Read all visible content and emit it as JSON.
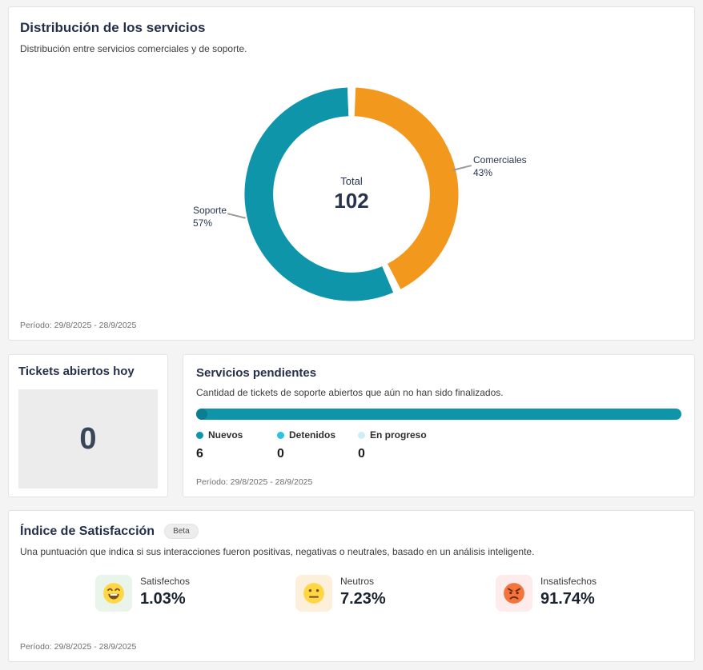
{
  "theme": {
    "teal": "#0e95aa",
    "teal_dark": "#0b7e90",
    "cyan": "#2bc4dc",
    "cyan_light": "#cdeef5",
    "orange": "#f2991d",
    "navy": "#28344e",
    "page_bg": "#f4f4f5"
  },
  "distribution_card": {
    "title": "Distribución de los servicios",
    "subtitle": "Distribución entre servicios comerciales y de soporte.",
    "center_label": "Total",
    "center_value": "102",
    "period": "Período: 29/8/2025 - 28/9/2025"
  },
  "chart_data": [
    {
      "type": "pie",
      "title": "Distribución de los servicios",
      "labels": [
        "Comerciales",
        "Soporte"
      ],
      "values": [
        43,
        57
      ],
      "pct_labels": [
        "43%",
        "57%"
      ],
      "colors": [
        "#f2991d",
        "#0e95aa"
      ],
      "center_label": "Total",
      "center_value": 102,
      "legend_position": "outside-callouts",
      "donut": true
    },
    {
      "type": "bar",
      "title": "Servicios pendientes",
      "orientation": "horizontal",
      "categories": [
        "Nuevos",
        "Detenidos",
        "En progreso"
      ],
      "values": [
        6,
        0,
        0
      ],
      "colors": [
        "#0e95aa",
        "#2bc4dc",
        "#cdeef5"
      ]
    }
  ],
  "tickets_card": {
    "title": "Tickets abiertos hoy",
    "value": "0"
  },
  "pending_card": {
    "title": "Servicios pendientes",
    "subtitle": "Cantidad de tickets de soporte abiertos que aún no han sido finalizados.",
    "legend": [
      {
        "label": "Nuevos",
        "value": "6",
        "color": "#0e95aa"
      },
      {
        "label": "Detenidos",
        "value": "0",
        "color": "#2bc4dc"
      },
      {
        "label": "En progreso",
        "value": "0",
        "color": "#cdeef5"
      }
    ],
    "period": "Período: 29/8/2025 - 28/9/2025"
  },
  "satisfaction_card": {
    "title": "Índice de Satisfacción",
    "badge": "Beta",
    "subtitle": "Una puntuación que indica si sus interacciones fueron positivas, negativas o neutrales, basado en un análisis inteligente.",
    "items": [
      {
        "label": "Satisfechos",
        "value": "1.03%",
        "mood": "happy",
        "bg": "#e9f4ea"
      },
      {
        "label": "Neutros",
        "value": "7.23%",
        "mood": "neutral",
        "bg": "#fcf0db"
      },
      {
        "label": "Insatisfechos",
        "value": "91.74%",
        "mood": "angry",
        "bg": "#fdeceb"
      }
    ],
    "period": "Período: 29/8/2025 - 28/9/2025"
  }
}
